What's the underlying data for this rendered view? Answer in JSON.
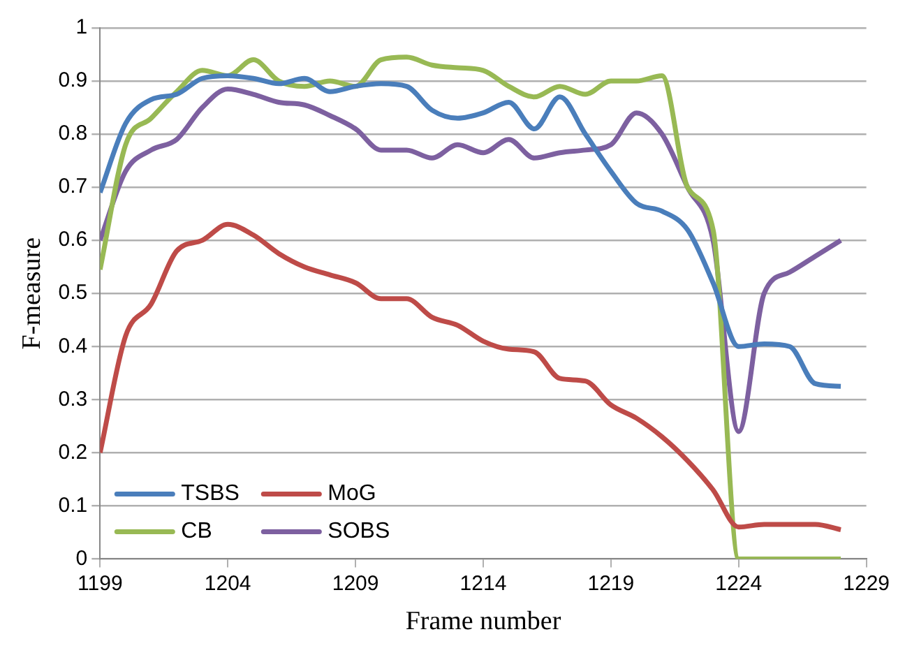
{
  "chart_data": {
    "type": "line",
    "xlabel": "Frame number",
    "ylabel": "F-measure",
    "x": [
      1199,
      1200,
      1201,
      1202,
      1203,
      1204,
      1205,
      1206,
      1207,
      1208,
      1209,
      1210,
      1211,
      1212,
      1213,
      1214,
      1215,
      1216,
      1217,
      1218,
      1219,
      1220,
      1221,
      1222,
      1223,
      1224,
      1225,
      1226,
      1227,
      1228
    ],
    "series": [
      {
        "name": "TSBS",
        "color": "#4a7ebb",
        "values": [
          0.69,
          0.82,
          0.865,
          0.875,
          0.905,
          0.91,
          0.905,
          0.895,
          0.905,
          0.88,
          0.89,
          0.895,
          0.89,
          0.845,
          0.83,
          0.84,
          0.86,
          0.81,
          0.87,
          0.8,
          0.73,
          0.67,
          0.655,
          0.62,
          0.52,
          0.4,
          0.405,
          0.4,
          0.33,
          0.325
        ]
      },
      {
        "name": "MoG",
        "color": "#be4b48",
        "values": [
          0.2,
          0.42,
          0.48,
          0.58,
          0.6,
          0.63,
          0.61,
          0.575,
          0.55,
          0.535,
          0.52,
          0.49,
          0.49,
          0.455,
          0.44,
          0.41,
          0.395,
          0.39,
          0.34,
          0.335,
          0.29,
          0.265,
          0.23,
          0.185,
          0.13,
          0.06,
          0.065,
          0.065,
          0.065,
          0.055
        ]
      },
      {
        "name": "CB",
        "color": "#98b954",
        "values": [
          0.545,
          0.78,
          0.83,
          0.88,
          0.92,
          0.91,
          0.94,
          0.9,
          0.89,
          0.9,
          0.89,
          0.94,
          0.945,
          0.93,
          0.925,
          0.92,
          0.89,
          0.87,
          0.89,
          0.875,
          0.9,
          0.9,
          0.91,
          0.7,
          0.62,
          0,
          0,
          0,
          0,
          0
        ]
      },
      {
        "name": "SOBS",
        "color": "#7d60a0",
        "values": [
          0.6,
          0.73,
          0.77,
          0.79,
          0.85,
          0.885,
          0.875,
          0.86,
          0.855,
          0.835,
          0.81,
          0.77,
          0.77,
          0.755,
          0.78,
          0.765,
          0.79,
          0.755,
          0.765,
          0.77,
          0.78,
          0.84,
          0.8,
          0.7,
          0.6,
          0.24,
          0.5,
          0.54,
          0.57,
          0.6
        ]
      }
    ],
    "xlim": [
      1199,
      1229
    ],
    "xticks": [
      1199,
      1204,
      1209,
      1214,
      1219,
      1224,
      1229
    ],
    "ylim": [
      0,
      1
    ],
    "yticks": [
      0,
      0.1,
      0.2,
      0.3,
      0.4,
      0.5,
      0.6,
      0.7,
      0.8,
      0.9,
      1
    ],
    "grid": "y",
    "legend": "bottom left",
    "marker": "none",
    "line_style": "solid"
  }
}
